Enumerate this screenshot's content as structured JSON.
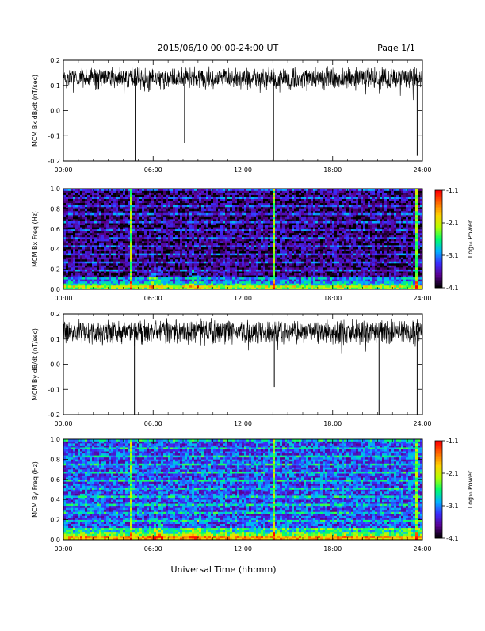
{
  "header": {
    "date_range": "2015/06/10  00:00-24:00 UT",
    "page": "Page 1/1"
  },
  "footer": {
    "xlabel": "Universal Time (hh:mm)"
  },
  "colors": {
    "trace": "#000000",
    "spectrogram_colormap": [
      "#000000",
      "#5a0090",
      "#3a2cff",
      "#00b4ff",
      "#00ff6a",
      "#b4ff00",
      "#ffd200",
      "#ff6e00",
      "#ff0000"
    ]
  },
  "chart_data": [
    {
      "type": "line",
      "ylabel": "MCM Bx dB/dt (nT/sec)",
      "x_ticks": [
        "00:00",
        "06:00",
        "12:00",
        "18:00",
        "24:00"
      ],
      "xlim_hours": [
        0,
        24
      ],
      "y_ticks": [
        "0.2",
        "0.1",
        "0.0",
        "-0.1",
        "-0.2"
      ],
      "ylim": [
        -0.2,
        0.2
      ],
      "baseline": 0.13,
      "noise_amplitude": 0.035,
      "spikes": [
        {
          "t_hours": 4.8,
          "value": -0.2
        },
        {
          "t_hours": 8.1,
          "value": -0.13
        },
        {
          "t_hours": 14.05,
          "value": -0.2
        },
        {
          "t_hours": 23.65,
          "value": -0.18
        }
      ]
    },
    {
      "type": "heatmap",
      "ylabel": "MCM Bx Freq (Hz)",
      "x_ticks": [
        "00:00",
        "06:00",
        "12:00",
        "18:00",
        "24:00"
      ],
      "xlim_hours": [
        0,
        24
      ],
      "y_ticks": [
        "1.0",
        "0.8",
        "0.6",
        "0.4",
        "0.2",
        "0.0"
      ],
      "ylim": [
        0,
        1.0
      ],
      "colorbar_label": "Log₁₀ Power",
      "colorbar_ticks": [
        "-1.1",
        "-2.1",
        "-3.1",
        "-4.1"
      ],
      "colorbar_range": [
        -4.1,
        -1.1
      ],
      "background_level": -3.8,
      "vertical_events_hours": [
        4.5,
        14.0,
        23.6
      ]
    },
    {
      "type": "line",
      "ylabel": "MCM By dB/dt (nT/sec)",
      "x_ticks": [
        "00:00",
        "06:00",
        "12:00",
        "18:00",
        "24:00"
      ],
      "xlim_hours": [
        0,
        24
      ],
      "y_ticks": [
        "0.2",
        "0.1",
        "0.0",
        "-0.1",
        "-0.2"
      ],
      "ylim": [
        -0.2,
        0.2
      ],
      "baseline": 0.13,
      "noise_amplitude": 0.04,
      "spikes": [
        {
          "t_hours": 4.75,
          "value": -0.2
        },
        {
          "t_hours": 14.1,
          "value": -0.09
        },
        {
          "t_hours": 21.1,
          "value": -0.2
        },
        {
          "t_hours": 23.65,
          "value": -0.2
        }
      ]
    },
    {
      "type": "heatmap",
      "ylabel": "MCM By Freq (Hz)",
      "x_ticks": [
        "00:00",
        "06:00",
        "12:00",
        "18:00",
        "24:00"
      ],
      "xlim_hours": [
        0,
        24
      ],
      "y_ticks": [
        "1.0",
        "0.8",
        "0.6",
        "0.4",
        "0.2",
        "0.0"
      ],
      "ylim": [
        0,
        1.0
      ],
      "colorbar_label": "Log₁₀ Power",
      "colorbar_ticks": [
        "-1.1",
        "-2.1",
        "-3.1",
        "-4.1"
      ],
      "colorbar_range": [
        -4.1,
        -1.1
      ],
      "background_level": -3.3,
      "vertical_events_hours": [
        4.5,
        14.0,
        23.6
      ]
    }
  ]
}
